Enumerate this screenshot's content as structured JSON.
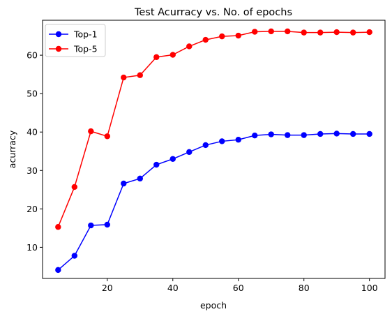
{
  "chart_data": {
    "type": "line",
    "title": "Test Acurracy vs. No. of epochs",
    "xlabel": "epoch",
    "ylabel": "acurracy",
    "xlim": [
      0.25,
      104.75
    ],
    "ylim": [
      1.9,
      69.1
    ],
    "xticks": [
      20,
      40,
      60,
      80,
      100
    ],
    "yticks": [
      10,
      20,
      30,
      40,
      50,
      60
    ],
    "grid": false,
    "legend_position": "top-left",
    "x": [
      5,
      10,
      15,
      20,
      25,
      30,
      35,
      40,
      45,
      50,
      55,
      60,
      65,
      70,
      75,
      80,
      85,
      90,
      95,
      100
    ],
    "series": [
      {
        "name": "Top-1",
        "color": "#0000ff",
        "marker": "circle",
        "values": [
          4.1,
          7.8,
          15.7,
          15.9,
          26.6,
          27.9,
          31.5,
          33.0,
          34.8,
          36.6,
          37.6,
          38.0,
          39.1,
          39.4,
          39.2,
          39.2,
          39.5,
          39.6,
          39.5,
          39.5
        ]
      },
      {
        "name": "Top-5",
        "color": "#ff0000",
        "marker": "circle",
        "values": [
          15.3,
          25.7,
          40.2,
          38.9,
          54.2,
          54.8,
          59.5,
          60.1,
          62.3,
          64.0,
          64.9,
          65.1,
          66.1,
          66.2,
          66.2,
          65.9,
          65.9,
          66.0,
          65.9,
          66.0
        ]
      }
    ]
  }
}
